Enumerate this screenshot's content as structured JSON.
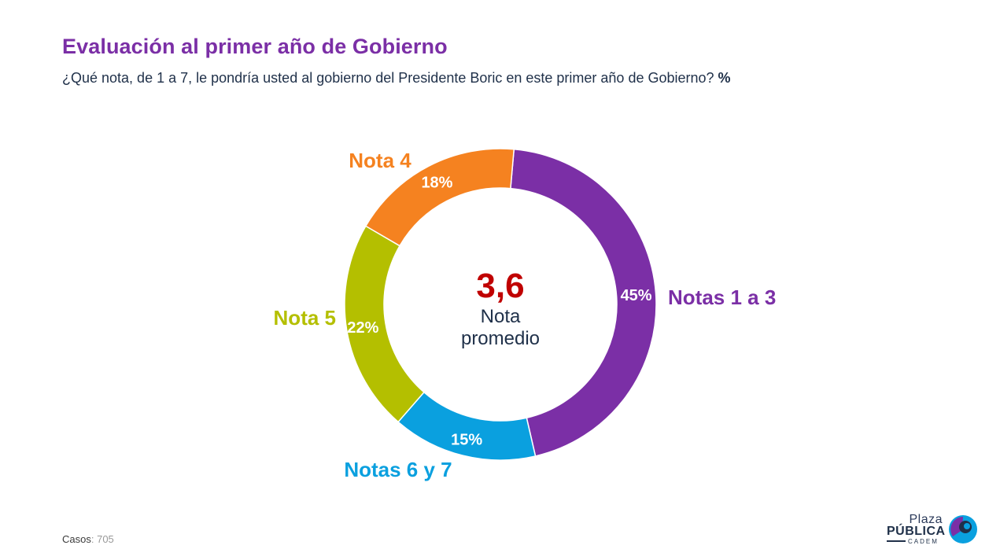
{
  "header": {
    "title": "Evaluación al primer año de Gobierno",
    "subtitle": "¿Qué nota, de 1 a 7, le pondría usted al gobierno del Presidente Boric en este primer año de Gobierno?",
    "unit": "%"
  },
  "chart_data": {
    "type": "pie",
    "variant": "donut",
    "title": "Evaluación al primer año de Gobierno",
    "unit": "%",
    "slices": [
      {
        "label": "Notas 1 a 3",
        "value": 45,
        "display": "45%",
        "color": "#7b2fa6"
      },
      {
        "label": "Notas 6 y 7",
        "value": 15,
        "display": "15%",
        "color": "#0aa0df"
      },
      {
        "label": "Nota 5",
        "value": 22,
        "display": "22%",
        "color": "#b4bf00"
      },
      {
        "label": "Nota 4",
        "value": 18,
        "display": "18%",
        "color": "#f58220"
      }
    ],
    "center": {
      "value": "3,6",
      "label_line1": "Nota",
      "label_line2": "promedio"
    },
    "center_value_color": "#c00000"
  },
  "footer": {
    "casos_label": "Casos",
    "casos_value": ": 705"
  },
  "logo": {
    "plaza": "Plaza",
    "publica": "PÚBLICA",
    "cadem": "CADEM"
  }
}
